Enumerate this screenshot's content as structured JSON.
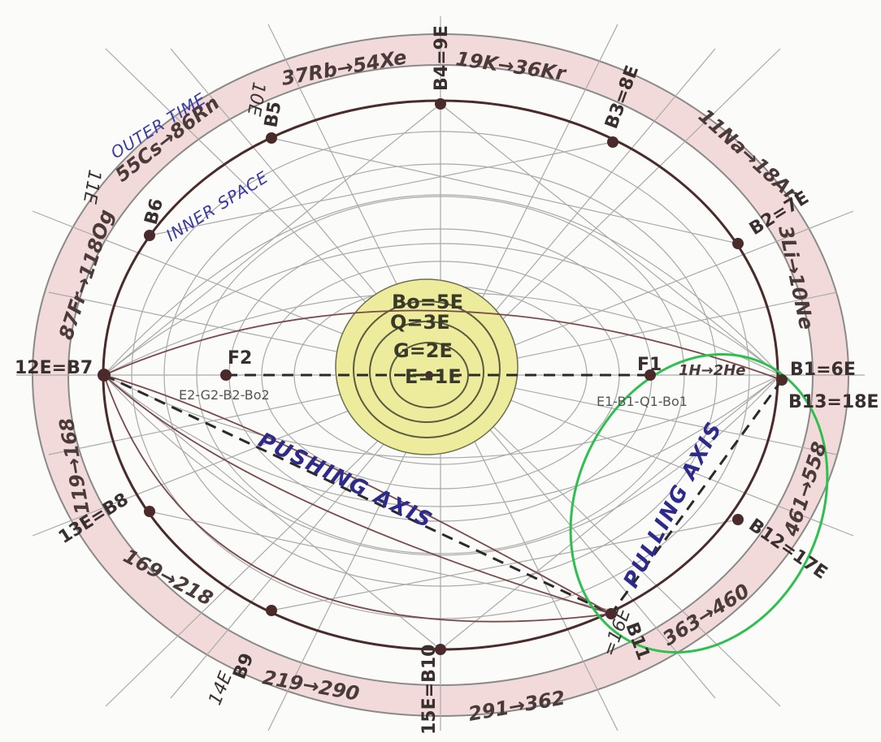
{
  "colors": {
    "paper": "#fbfbfa",
    "pencil": "#9a9a9a",
    "ink": "#4a2a2a",
    "ring_band": "#f3d6d6",
    "core_yellow": "#ecec9c",
    "green_loop": "#2fbf4f",
    "blue_text": "#2d2a8c"
  },
  "nodes": {
    "b1": "B1=6E",
    "b13": "B13=18E",
    "b2": "B2=7E",
    "b3": "B3=8E",
    "b4": "B4=9E",
    "b5": "B5",
    "b5_energy": "10E",
    "b6": "B6",
    "b6_energy": "11E",
    "b7": "12E=B7",
    "b8": "13E=B8",
    "b9": "B9",
    "b9_energy": "14E",
    "b10": "15E=B10",
    "b11": "B11",
    "b11_energy": "=16E",
    "b12": "B12=17E"
  },
  "ring_segments": {
    "s1": "1H→2He",
    "s2": "3Li→10Ne",
    "s3": "11Na→18Ar",
    "s4": "19K→36Kr",
    "s5": "37Rb→54Xe",
    "s6": "55Cs→86Rn",
    "s7": "87Fr→118Og",
    "s8": "119→168",
    "s9": "169→218",
    "s10": "219→290",
    "s11": "291→362",
    "s12": "363→460",
    "s13": "461→558"
  },
  "foci": {
    "f1": "F1",
    "f2": "F2",
    "f1_eq": "E1-B1-Q1-Bo1",
    "f2_eq": "E2-G2-B2-Bo2"
  },
  "center": {
    "bo": "Bo=5E",
    "q": "Q=3E",
    "g": "G=2E",
    "e": "E=1E"
  },
  "annotations": {
    "outer_time": "OUTER TIME",
    "inner_space": "INNER SPACE",
    "pushing_axis": "PUSHING AXIS",
    "pulling_axis": "PULLING AXIS"
  }
}
